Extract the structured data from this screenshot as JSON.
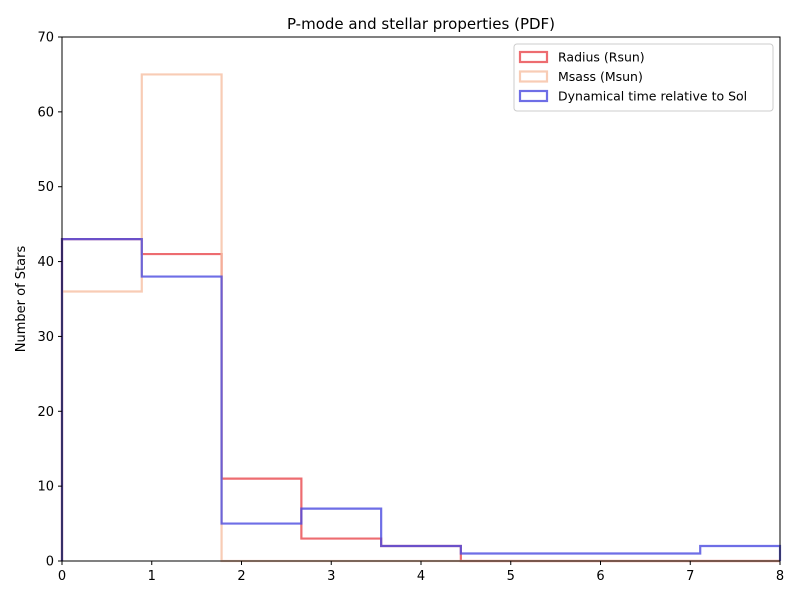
{
  "chart_data": {
    "type": "histogram-step",
    "title": "P-mode and stellar properties (PDF)",
    "xlabel": "",
    "ylabel": "Number of Stars",
    "xlim": [
      0,
      8
    ],
    "ylim": [
      0,
      70
    ],
    "xticks": [
      0,
      1,
      2,
      3,
      4,
      5,
      6,
      7,
      8
    ],
    "yticks": [
      0,
      10,
      20,
      30,
      40,
      50,
      60,
      70
    ],
    "grid": false,
    "legend_position": "top-right",
    "series": [
      {
        "name": "Radius (Rsun)",
        "color": "#e8474c",
        "bin_edges": [
          0,
          0.889,
          1.778,
          2.667,
          3.556,
          4.444,
          5.333,
          6.222,
          7.111,
          8.0
        ],
        "counts": [
          43,
          41,
          11,
          3,
          2,
          0,
          0,
          0,
          0
        ]
      },
      {
        "name": "Msass (Msun)",
        "color": "#f6bfa3",
        "bin_edges": [
          0,
          0.889,
          1.778,
          2.667,
          3.556,
          4.444,
          5.333,
          6.222,
          7.111,
          8.0
        ],
        "counts": [
          36,
          65,
          0,
          0,
          0,
          0,
          0,
          0,
          0
        ]
      },
      {
        "name": "Dynamical time relative to Sol",
        "color": "#4a4ae0",
        "bin_edges": [
          0,
          0.889,
          1.778,
          2.667,
          3.556,
          4.444,
          5.333,
          6.222,
          7.111,
          8.0
        ],
        "counts": [
          43,
          38,
          5,
          7,
          2,
          1,
          1,
          1,
          2
        ]
      }
    ]
  }
}
